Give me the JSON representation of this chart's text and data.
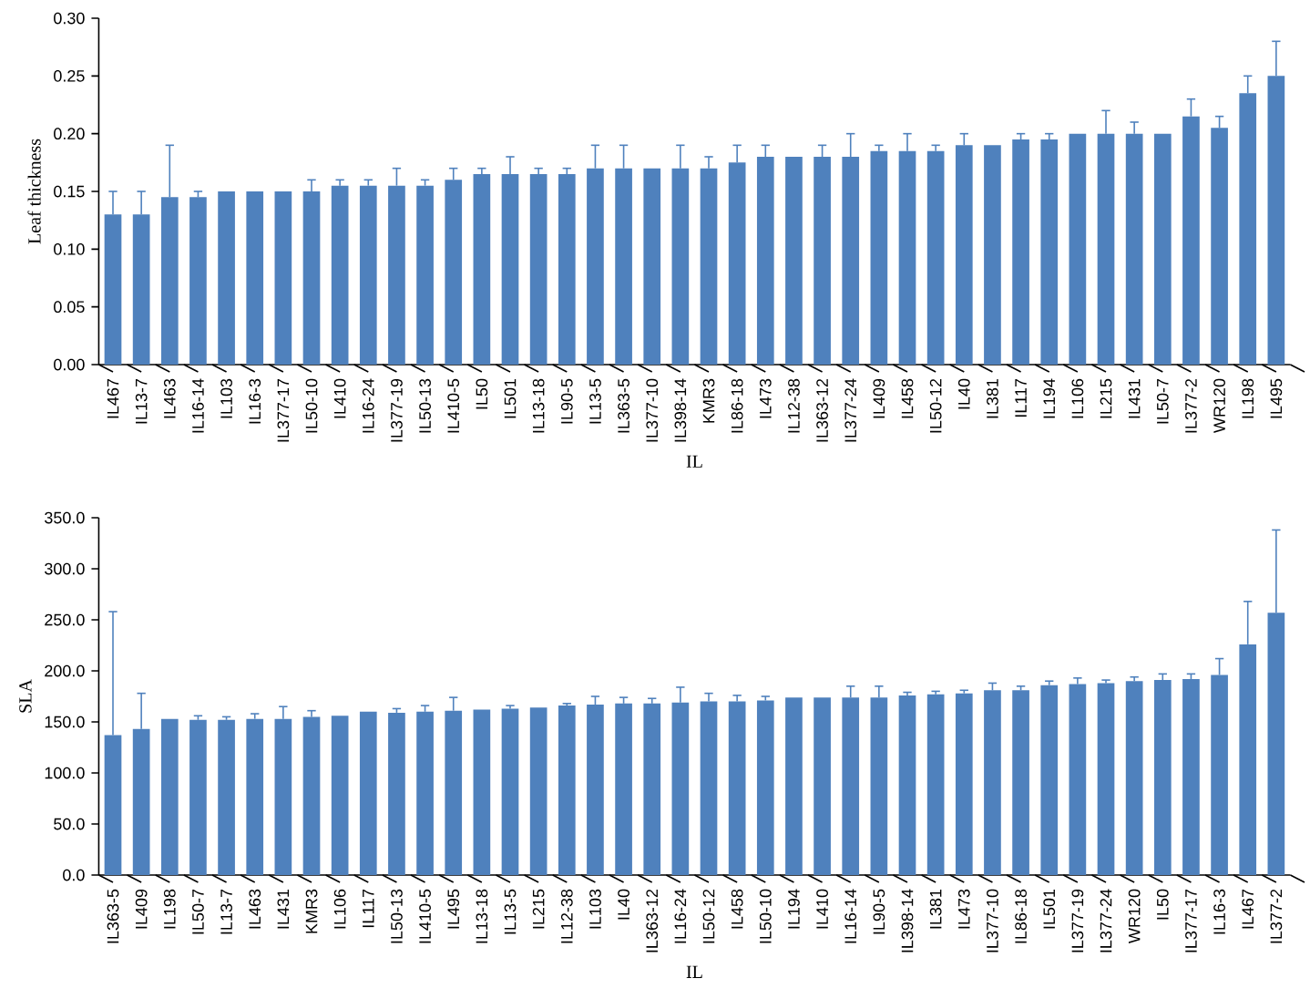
{
  "chart_data": [
    {
      "type": "bar",
      "ylabel": "Leaf thickness",
      "xlabel": "IL",
      "color": "#4f81bd",
      "categories": [
        "IL467",
        "IL13-7",
        "IL463",
        "IL16-14",
        "IL103",
        "IL16-3",
        "IL377-17",
        "IL50-10",
        "IL410",
        "IL16-24",
        "IL377-19",
        "IL50-13",
        "IL410-5",
        "IL50",
        "IL501",
        "IL13-18",
        "IL90-5",
        "IL13-5",
        "IL363-5",
        "IL377-10",
        "IL398-14",
        "KMR3",
        "IL86-18",
        "IL473",
        "IL12-38",
        "IL363-12",
        "IL377-24",
        "IL409",
        "IL458",
        "IL50-12",
        "IL40",
        "IL381",
        "IL117",
        "IL194",
        "IL106",
        "IL215",
        "IL431",
        "IL50-7",
        "IL377-2",
        "WR120",
        "IL198",
        "IL495"
      ],
      "values": [
        0.13,
        0.13,
        0.145,
        0.145,
        0.15,
        0.15,
        0.15,
        0.15,
        0.155,
        0.155,
        0.155,
        0.155,
        0.16,
        0.165,
        0.165,
        0.165,
        0.165,
        0.17,
        0.17,
        0.17,
        0.17,
        0.17,
        0.175,
        0.18,
        0.18,
        0.18,
        0.18,
        0.185,
        0.185,
        0.185,
        0.19,
        0.19,
        0.195,
        0.195,
        0.2,
        0.2,
        0.2,
        0.2,
        0.215,
        0.205,
        0.235,
        0.25
      ],
      "errors": [
        [
          0.13,
          0.15
        ],
        [
          0.13,
          0.15
        ],
        [
          0.145,
          0.19
        ],
        [
          0.145,
          0.15
        ],
        null,
        null,
        null,
        [
          0.15,
          0.16
        ],
        [
          0.155,
          0.16
        ],
        [
          0.155,
          0.16
        ],
        [
          0.155,
          0.17
        ],
        [
          0.155,
          0.16
        ],
        [
          0.16,
          0.17
        ],
        [
          0.165,
          0.17
        ],
        [
          0.165,
          0.18
        ],
        [
          0.165,
          0.17
        ],
        [
          0.165,
          0.17
        ],
        [
          0.17,
          0.19
        ],
        [
          0.17,
          0.19
        ],
        null,
        [
          0.17,
          0.19
        ],
        [
          0.17,
          0.18
        ],
        [
          0.175,
          0.19
        ],
        [
          0.18,
          0.19
        ],
        null,
        [
          0.18,
          0.19
        ],
        [
          0.18,
          0.2
        ],
        [
          0.185,
          0.19
        ],
        [
          0.185,
          0.2
        ],
        [
          0.185,
          0.19
        ],
        [
          0.19,
          0.2
        ],
        null,
        [
          0.195,
          0.2
        ],
        [
          0.195,
          0.2
        ],
        null,
        [
          0.2,
          0.22
        ],
        [
          0.2,
          0.21
        ],
        null,
        [
          0.215,
          0.23
        ],
        [
          0.205,
          0.215
        ],
        [
          0.235,
          0.25
        ],
        [
          0.25,
          0.28
        ]
      ],
      "ylim": [
        0,
        0.3
      ],
      "yticks": [
        {
          "value": 0,
          "label": "0.00"
        },
        {
          "value": 0.05,
          "label": "0.05"
        },
        {
          "value": 0.1,
          "label": "0.10"
        },
        {
          "value": 0.15,
          "label": "0.15"
        },
        {
          "value": 0.2,
          "label": "0.20"
        },
        {
          "value": 0.25,
          "label": "0.25"
        },
        {
          "value": 0.3,
          "label": "0.30"
        }
      ]
    },
    {
      "type": "bar",
      "ylabel": "SLA",
      "xlabel": "IL",
      "color": "#4f81bd",
      "categories": [
        "IL363-5",
        "IL409",
        "IL198",
        "IL50-7",
        "IL13-7",
        "IL463",
        "IL431",
        "KMR3",
        "IL106",
        "IL117",
        "IL50-13",
        "IL410-5",
        "IL495",
        "IL13-18",
        "IL13-5",
        "IL215",
        "IL12-38",
        "IL103",
        "IL40",
        "IL363-12",
        "IL16-24",
        "IL50-12",
        "IL458",
        "IL50-10",
        "IL194",
        "IL410",
        "IL16-14",
        "IL90-5",
        "IL398-14",
        "IL381",
        "IL473",
        "IL377-10",
        "IL86-18",
        "IL501",
        "IL377-19",
        "IL377-24",
        "WR120",
        "IL50",
        "IL377-17",
        "IL16-3",
        "IL467",
        "IL377-2"
      ],
      "values": [
        137,
        143,
        153,
        152,
        152,
        153,
        153,
        155,
        156,
        160,
        159,
        160,
        161,
        162,
        163,
        164,
        166,
        167,
        168,
        168,
        169,
        170,
        170,
        171,
        174,
        174,
        174,
        174,
        176,
        177,
        178,
        181,
        181,
        186,
        187,
        188,
        190,
        191,
        192,
        196,
        226,
        257
      ],
      "errors": [
        [
          137,
          258
        ],
        [
          143,
          178
        ],
        null,
        [
          152,
          156
        ],
        [
          152,
          155
        ],
        [
          153,
          158
        ],
        [
          153,
          165
        ],
        [
          155,
          161
        ],
        null,
        null,
        [
          159,
          163
        ],
        [
          160,
          166
        ],
        [
          161,
          174
        ],
        null,
        [
          163,
          166
        ],
        null,
        [
          166,
          168
        ],
        [
          167,
          175
        ],
        [
          168,
          174
        ],
        [
          168,
          173
        ],
        [
          169,
          184
        ],
        [
          170,
          178
        ],
        [
          170,
          176
        ],
        [
          171,
          175
        ],
        null,
        null,
        [
          174,
          185
        ],
        [
          174,
          185
        ],
        [
          176,
          179
        ],
        [
          177,
          180
        ],
        [
          178,
          181
        ],
        [
          181,
          188
        ],
        [
          181,
          185
        ],
        [
          186,
          190
        ],
        [
          187,
          193
        ],
        [
          188,
          191
        ],
        [
          190,
          194
        ],
        [
          191,
          197
        ],
        [
          192,
          197
        ],
        [
          196,
          212
        ],
        [
          226,
          268
        ],
        [
          257,
          338
        ]
      ],
      "ylim": [
        0,
        350
      ],
      "yticks": [
        {
          "value": 0,
          "label": "0.0"
        },
        {
          "value": 50,
          "label": "50.0"
        },
        {
          "value": 100,
          "label": "100.0"
        },
        {
          "value": 150,
          "label": "150.0"
        },
        {
          "value": 200,
          "label": "200.0"
        },
        {
          "value": 250,
          "label": "250.0"
        },
        {
          "value": 300,
          "label": "300.0"
        },
        {
          "value": 350,
          "label": "350.0"
        }
      ]
    }
  ]
}
